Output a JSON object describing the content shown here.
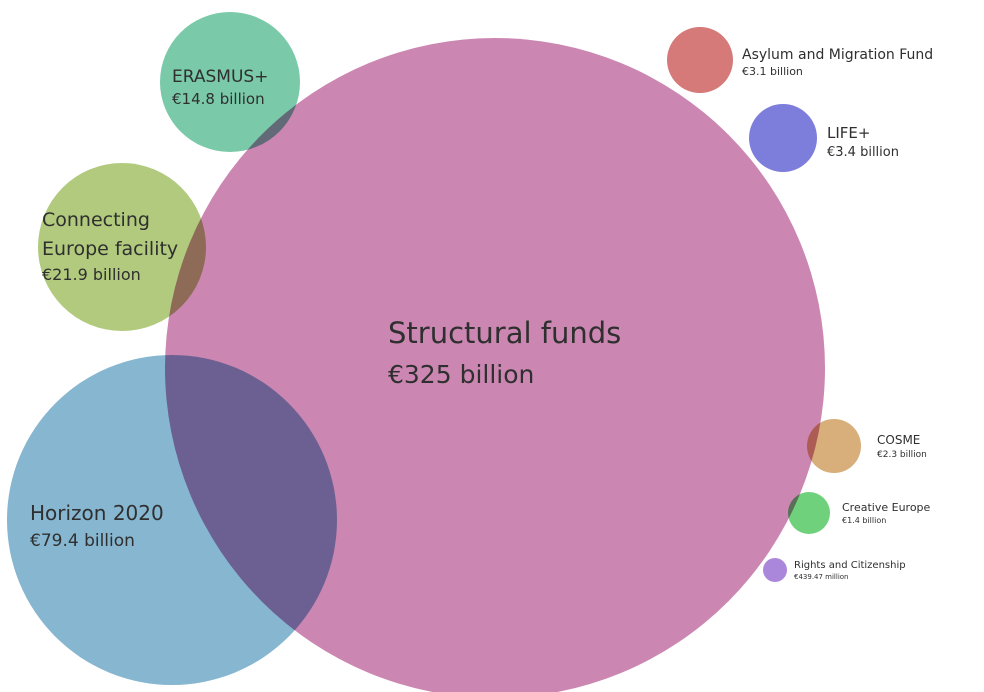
{
  "chart_data": {
    "type": "bubble",
    "title": "",
    "series": [
      {
        "id": "structural",
        "label": "Structural funds",
        "value_text": "€325 billion",
        "value": 325,
        "color": "#c57aaa"
      },
      {
        "id": "horizon",
        "label": "Horizon 2020",
        "value_text": "€79.4 billion",
        "value": 79.4,
        "color": "#79aecb"
      },
      {
        "id": "cef",
        "label": "Connecting Europe facility",
        "value_text": "€21.9 billion",
        "value": 21.9,
        "color": "#a8c46f"
      },
      {
        "id": "erasmus",
        "label": "ERASMUS+",
        "value_text": "€14.8 billion",
        "value": 14.8,
        "color": "#6cc3a0"
      },
      {
        "id": "asylum",
        "label": "Asylum and Migration Fund",
        "value_text": "€3.1 billion",
        "value": 3.1,
        "color": "#d06a6a"
      },
      {
        "id": "life",
        "label": "LIFE+",
        "value_text": "€3.4 billion",
        "value": 3.4,
        "color": "#6f6fd8"
      },
      {
        "id": "cosme",
        "label": "COSME",
        "value_text": "€2.3 billion",
        "value": 2.3,
        "color": "#d4a56c"
      },
      {
        "id": "creative",
        "label": "Creative Europe",
        "value_text": "€1.4 billion",
        "value": 1.4,
        "color": "#5fcc6e"
      },
      {
        "id": "rights",
        "label": "Rights and Citizenship",
        "value_text": "€439.47 million",
        "value": 0.43947,
        "color": "#a27ad8"
      }
    ]
  }
}
